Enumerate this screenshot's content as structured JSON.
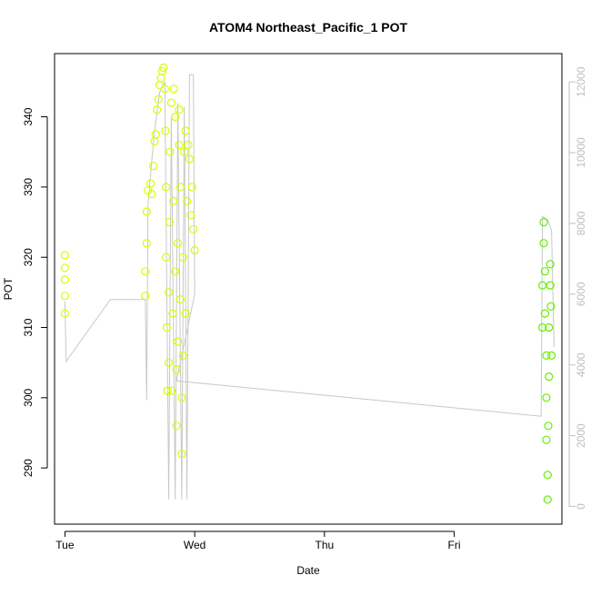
{
  "chart_data": {
    "type": "scatter",
    "title": "ATOM4 Northeast_Pacific_1 POT",
    "xlabel": "Date",
    "ylabel": "POT",
    "y2label": "",
    "x_ticks": [
      "Tue",
      "Wed",
      "Thu",
      "Fri"
    ],
    "x_range_days": [
      -0.08,
      3.83
    ],
    "ylim": [
      282,
      349
    ],
    "y_ticks": [
      290,
      300,
      310,
      320,
      330,
      340
    ],
    "y2lim": [
      -500,
      12800
    ],
    "y2_ticks": [
      0,
      2000,
      4000,
      6000,
      8000,
      10000,
      12000
    ],
    "grid": false,
    "legend": "none",
    "colors": {
      "early": "#d6ff00",
      "late": "#66ee00",
      "altitude_line": "#c8c8c8",
      "axis": "#000000",
      "secondary_axis": "#bebebe"
    },
    "series": [
      {
        "points": [
          {
            "t": 0.0,
            "pot": 312.0
          },
          {
            "t": 0.0,
            "pot": 314.5
          },
          {
            "t": 0.0,
            "pot": 316.8
          },
          {
            "t": 0.0,
            "pot": 318.5
          },
          {
            "t": 0.0,
            "pot": 320.3
          },
          {
            "t": 0.62,
            "pot": 314.5
          },
          {
            "t": 0.62,
            "pot": 318.0
          },
          {
            "t": 0.63,
            "pot": 322.0
          },
          {
            "t": 0.63,
            "pot": 326.5
          },
          {
            "t": 0.64,
            "pot": 329.5
          },
          {
            "t": 0.66,
            "pot": 330.5
          },
          {
            "t": 0.67,
            "pot": 329.0
          },
          {
            "t": 0.68,
            "pot": 333.0
          },
          {
            "t": 0.69,
            "pot": 336.5
          },
          {
            "t": 0.7,
            "pot": 337.5
          },
          {
            "t": 0.71,
            "pot": 341.0
          },
          {
            "t": 0.72,
            "pot": 342.5
          },
          {
            "t": 0.73,
            "pot": 344.5
          },
          {
            "t": 0.74,
            "pot": 345.5
          },
          {
            "t": 0.75,
            "pot": 346.5
          },
          {
            "t": 0.76,
            "pot": 347.0
          },
          {
            "t": 0.77,
            "pot": 344.0
          },
          {
            "t": 0.775,
            "pot": 338.0
          },
          {
            "t": 0.78,
            "pot": 330.0
          },
          {
            "t": 0.78,
            "pot": 320.0
          },
          {
            "t": 0.785,
            "pot": 310.0
          },
          {
            "t": 0.79,
            "pot": 301.0
          },
          {
            "t": 0.8,
            "pot": 305.0
          },
          {
            "t": 0.8,
            "pot": 315.0
          },
          {
            "t": 0.805,
            "pot": 325.0
          },
          {
            "t": 0.81,
            "pot": 335.0
          },
          {
            "t": 0.82,
            "pot": 342.0
          },
          {
            "t": 0.82,
            "pot": 301.0
          },
          {
            "t": 0.83,
            "pot": 312.0
          },
          {
            "t": 0.835,
            "pot": 328.0
          },
          {
            "t": 0.84,
            "pot": 344.0
          },
          {
            "t": 0.85,
            "pot": 340.0
          },
          {
            "t": 0.85,
            "pot": 318.0
          },
          {
            "t": 0.86,
            "pot": 304.0
          },
          {
            "t": 0.86,
            "pot": 296.0
          },
          {
            "t": 0.87,
            "pot": 308.0
          },
          {
            "t": 0.87,
            "pot": 322.0
          },
          {
            "t": 0.88,
            "pot": 336.0
          },
          {
            "t": 0.88,
            "pot": 341.0
          },
          {
            "t": 0.89,
            "pot": 330.0
          },
          {
            "t": 0.89,
            "pot": 314.0
          },
          {
            "t": 0.9,
            "pot": 300.0
          },
          {
            "t": 0.9,
            "pot": 292.0
          },
          {
            "t": 0.91,
            "pot": 306.0
          },
          {
            "t": 0.91,
            "pot": 320.0
          },
          {
            "t": 0.92,
            "pot": 335.0
          },
          {
            "t": 0.93,
            "pot": 338.0
          },
          {
            "t": 0.93,
            "pot": 312.0
          },
          {
            "t": 0.94,
            "pot": 328.0
          },
          {
            "t": 0.95,
            "pot": 336.0
          },
          {
            "t": 0.96,
            "pot": 334.0
          },
          {
            "t": 0.97,
            "pot": 326.0
          },
          {
            "t": 0.98,
            "pot": 330.0
          },
          {
            "t": 0.99,
            "pot": 324.0
          },
          {
            "t": 1.0,
            "pot": 321.0
          }
        ]
      },
      {
        "points": [
          {
            "t": 3.68,
            "pot": 310.0
          },
          {
            "t": 3.68,
            "pot": 316.0
          },
          {
            "t": 3.69,
            "pot": 322.0
          },
          {
            "t": 3.69,
            "pot": 325.0
          },
          {
            "t": 3.7,
            "pot": 318.0
          },
          {
            "t": 3.7,
            "pot": 312.0
          },
          {
            "t": 3.71,
            "pot": 306.0
          },
          {
            "t": 3.71,
            "pot": 300.0
          },
          {
            "t": 3.71,
            "pot": 294.0
          },
          {
            "t": 3.72,
            "pot": 289.0
          },
          {
            "t": 3.72,
            "pot": 285.5
          },
          {
            "t": 3.725,
            "pot": 296.0
          },
          {
            "t": 3.73,
            "pot": 303.0
          },
          {
            "t": 3.73,
            "pot": 310.0
          },
          {
            "t": 3.74,
            "pot": 316.0
          },
          {
            "t": 3.74,
            "pot": 319.0
          },
          {
            "t": 3.745,
            "pot": 313.0
          },
          {
            "t": 3.75,
            "pot": 306.0
          }
        ]
      }
    ],
    "altitude_path": [
      {
        "t": 0.0,
        "alt": 5800
      },
      {
        "t": 0.01,
        "alt": 4100
      },
      {
        "t": 0.35,
        "alt": 5850
      },
      {
        "t": 0.62,
        "alt": 5850
      },
      {
        "t": 0.63,
        "alt": 3000
      },
      {
        "t": 0.64,
        "alt": 8500
      },
      {
        "t": 0.67,
        "alt": 9800
      },
      {
        "t": 0.69,
        "alt": 10600
      },
      {
        "t": 0.73,
        "alt": 11700
      },
      {
        "t": 0.77,
        "alt": 12000
      },
      {
        "t": 0.8,
        "alt": 200
      },
      {
        "t": 0.82,
        "alt": 11000
      },
      {
        "t": 0.85,
        "alt": 200
      },
      {
        "t": 0.87,
        "alt": 11400
      },
      {
        "t": 0.9,
        "alt": 200
      },
      {
        "t": 0.92,
        "alt": 11300
      },
      {
        "t": 0.94,
        "alt": 200
      },
      {
        "t": 0.96,
        "alt": 12200
      },
      {
        "t": 0.99,
        "alt": 12200
      },
      {
        "t": 1.0,
        "alt": 6000
      },
      {
        "t": 0.86,
        "alt": 3550
      },
      {
        "t": 3.67,
        "alt": 2550
      },
      {
        "t": 3.68,
        "alt": 8200
      },
      {
        "t": 3.72,
        "alt": 8100
      },
      {
        "t": 3.75,
        "alt": 7800
      },
      {
        "t": 3.77,
        "alt": 4500
      }
    ]
  }
}
